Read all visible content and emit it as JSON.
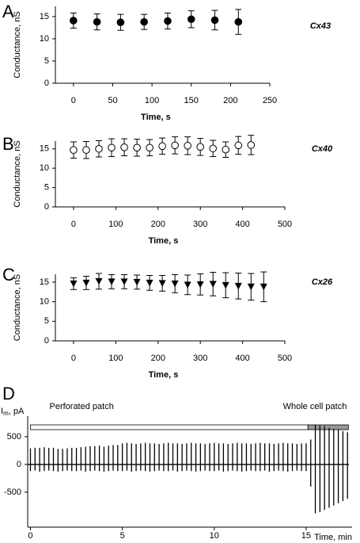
{
  "chart_data": [
    {
      "type": "scatter",
      "panel": "A",
      "x_label": "Time, s",
      "y_label": "Conductance, nS",
      "x": [
        0,
        30,
        60,
        90,
        120,
        150,
        180,
        210
      ],
      "series": [
        {
          "name": "Cx43",
          "color": "#000000",
          "marker": "filled-circle",
          "values": [
            14.1,
            13.8,
            13.7,
            13.8,
            14.0,
            14.4,
            14.2,
            13.8
          ],
          "errors": [
            1.7,
            1.8,
            1.8,
            1.7,
            1.8,
            1.9,
            2.2,
            2.8
          ]
        }
      ],
      "xlim": [
        -23,
        250
      ],
      "xticks": [
        0,
        50,
        100,
        150,
        200,
        250
      ],
      "ylim": [
        0,
        17.3
      ],
      "yticks": [
        0,
        5,
        10,
        15
      ]
    },
    {
      "type": "scatter",
      "panel": "B",
      "x_label": "Time, s",
      "y_label": "Conductance, nS",
      "x": [
        0,
        30,
        60,
        90,
        120,
        150,
        180,
        210,
        240,
        270,
        300,
        330,
        360,
        390,
        420
      ],
      "series": [
        {
          "name": "Cx40",
          "color": "#000000",
          "marker": "open-circle",
          "values": [
            14.7,
            14.7,
            15.0,
            15.3,
            15.4,
            15.3,
            15.3,
            15.7,
            15.9,
            15.8,
            15.5,
            15.1,
            14.8,
            15.9,
            16.0
          ],
          "errors": [
            2.1,
            2.2,
            2.1,
            2.3,
            2.2,
            2.2,
            2.1,
            2.1,
            2.2,
            2.3,
            2.2,
            2.1,
            2.0,
            2.3,
            2.5
          ]
        }
      ],
      "xlim": [
        -43,
        500
      ],
      "xticks": [
        0,
        100,
        200,
        300,
        400,
        500
      ],
      "ylim": [
        0,
        17
      ],
      "yticks": [
        0,
        5,
        10,
        15
      ]
    },
    {
      "type": "scatter",
      "panel": "C",
      "x_label": "Time, s",
      "y_label": "Conductance, nS",
      "x": [
        0,
        30,
        60,
        90,
        120,
        150,
        180,
        210,
        240,
        270,
        300,
        330,
        360,
        390,
        420,
        450
      ],
      "series": [
        {
          "name": "Cx26",
          "color": "#000000",
          "marker": "triangle-down",
          "values": [
            14.6,
            14.8,
            15.2,
            15.1,
            15.1,
            15.0,
            14.8,
            14.7,
            14.6,
            14.3,
            14.4,
            14.5,
            14.2,
            14.0,
            13.8,
            13.8
          ],
          "errors": [
            1.5,
            1.7,
            2.0,
            1.8,
            1.8,
            1.8,
            1.9,
            2.0,
            2.3,
            2.5,
            2.7,
            3.0,
            3.2,
            3.3,
            3.4,
            3.8
          ]
        }
      ],
      "xlim": [
        -43,
        500
      ],
      "xticks": [
        0,
        100,
        200,
        300,
        400,
        500
      ],
      "ylim": [
        0,
        17
      ],
      "yticks": [
        0,
        5,
        10,
        15
      ]
    },
    {
      "type": "trace",
      "panel": "D",
      "x_label": "Time, min",
      "y_label": [
        "I",
        "m",
        ", pA"
      ],
      "x": [
        0,
        0.25,
        0.5,
        0.75,
        1,
        1.25,
        1.5,
        1.75,
        2,
        2.25,
        2.5,
        2.75,
        3,
        3.25,
        3.5,
        3.75,
        4,
        4.25,
        4.5,
        4.75,
        5,
        5.25,
        5.5,
        5.75,
        6,
        6.25,
        6.5,
        6.75,
        7,
        7.25,
        7.5,
        7.75,
        8,
        8.25,
        8.5,
        8.75,
        9,
        9.25,
        9.5,
        9.75,
        10,
        10.25,
        10.5,
        10.75,
        11,
        11.25,
        11.5,
        11.75,
        12,
        12.25,
        12.5,
        12.75,
        13,
        13.25,
        13.5,
        13.75,
        14,
        14.25,
        14.5,
        14.75,
        15,
        15.25,
        15.5,
        15.75,
        16,
        16.25,
        16.5,
        16.75,
        17,
        17.25
      ],
      "values": [
        290,
        300,
        300,
        310,
        300,
        300,
        280,
        280,
        290,
        300,
        300,
        310,
        320,
        330,
        330,
        340,
        320,
        340,
        350,
        350,
        380,
        390,
        380,
        370,
        380,
        390,
        380,
        380,
        370,
        380,
        390,
        380,
        380,
        370,
        380,
        390,
        380,
        380,
        370,
        380,
        390,
        380,
        380,
        370,
        380,
        390,
        380,
        380,
        370,
        380,
        390,
        380,
        380,
        370,
        380,
        390,
        380,
        380,
        370,
        380,
        380,
        450,
        720,
        700,
        690,
        660,
        640,
        620,
        600,
        580
      ],
      "lower": [
        -120,
        -110,
        -130,
        -120,
        -110,
        -120,
        -130,
        -120,
        -110,
        -120,
        -120,
        -110,
        -130,
        -120,
        -110,
        -120,
        -130,
        -120,
        -110,
        -120,
        -120,
        -110,
        -130,
        -120,
        -110,
        -120,
        -130,
        -120,
        -110,
        -120,
        -120,
        -110,
        -130,
        -120,
        -110,
        -120,
        -130,
        -120,
        -110,
        -120,
        -120,
        -110,
        -130,
        -120,
        -110,
        -120,
        -130,
        -120,
        -110,
        -120,
        -120,
        -110,
        -130,
        -120,
        -110,
        -120,
        -130,
        -120,
        -110,
        -120,
        -120,
        -400,
        -880,
        -860,
        -820,
        -780,
        -740,
        -700,
        -660,
        -620
      ],
      "color": "#000000",
      "periods": [
        {
          "label": "Perforated patch",
          "start": 0,
          "end": 15.1,
          "color": "#ffffff"
        },
        {
          "label": "Whole cell patch",
          "start": 15.1,
          "end": 17.3,
          "color": "#999999"
        }
      ],
      "xlim": [
        -0.15,
        17.5
      ],
      "xticks": [
        0,
        5,
        10,
        15
      ],
      "ylim": [
        -1130,
        870
      ],
      "yticks": [
        -500,
        0,
        500
      ]
    }
  ]
}
